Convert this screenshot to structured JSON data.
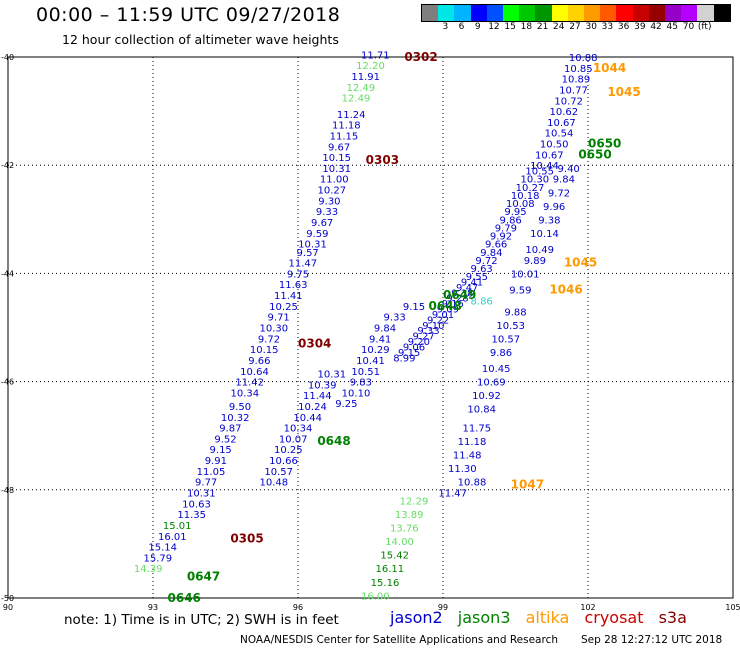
{
  "header": {
    "title": "00:00 – 11:59 UTC 09/27/2018",
    "subtitle": "12 hour collection of altimeter wave heights"
  },
  "color_scale": {
    "colors": [
      "#7f7f7f",
      "#00e6e6",
      "#00b4ff",
      "#0000ff",
      "#0050ff",
      "#00ff00",
      "#00c800",
      "#009600",
      "#ffff00",
      "#ffd200",
      "#ff9900",
      "#ff5a00",
      "#ff0000",
      "#c80000",
      "#960000",
      "#9600c8",
      "#b400ff",
      "#d2d2d2",
      "#000000"
    ],
    "labels": [
      "3",
      "6",
      "9",
      "12",
      "15",
      "18",
      "21",
      "24",
      "27",
      "30",
      "33",
      "36",
      "39",
      "42",
      "45",
      "70",
      "(ft)"
    ]
  },
  "axes": {
    "x_ticks": [
      "90",
      "93",
      "96",
      "99",
      "102",
      "105"
    ],
    "y_ticks": [
      "-40",
      "-42",
      "-44",
      "-46",
      "-48",
      "-50"
    ]
  },
  "sat_colors": {
    "jason2": "#0000cc",
    "jason3": "#008000",
    "jason3_light": "#66dd66",
    "altika": "#ff9900",
    "cryosat": "#cc0000",
    "s3a": "#800000",
    "cyan": "#33cccc"
  },
  "tracks": {
    "track_a": {
      "values": [
        "11.71",
        "12.20",
        "11.91",
        "12.49",
        "12.49",
        "11.24",
        "11.18",
        "11.15",
        "9.67",
        "10.15",
        "10.31",
        "11.00",
        "10.27",
        "9.30",
        "9.33",
        "9.67",
        "9.59",
        "10.31",
        "9.57",
        "11.47",
        "9.75",
        "11.63",
        "11.41",
        "10.25",
        "9.71",
        "10.30",
        "9.72",
        "10.15",
        "9.66",
        "10.64",
        "11.42",
        "10.34",
        "9.50",
        "10.32",
        "9.87",
        "9.52",
        "9.15",
        "9.91",
        "11.05",
        "9.77",
        "10.31",
        "10.63",
        "11.35",
        "15.01",
        "16.01",
        "15.14",
        "15.79",
        "14.39"
      ],
      "lons": [
        97.6,
        97.5,
        97.4,
        97.3,
        97.2,
        97.1,
        97.0,
        96.95,
        96.85,
        96.8,
        96.8,
        96.75,
        96.7,
        96.65,
        96.6,
        96.5,
        96.4,
        96.3,
        96.2,
        96.1,
        96.0,
        95.9,
        95.8,
        95.7,
        95.6,
        95.5,
        95.4,
        95.3,
        95.2,
        95.1,
        95.0,
        94.9,
        94.8,
        94.7,
        94.6,
        94.5,
        94.4,
        94.3,
        94.2,
        94.1,
        94.0,
        93.9,
        93.8,
        93.5,
        93.4,
        93.2,
        93.1,
        92.9
      ],
      "lats": [
        -39.95,
        -40.15,
        -40.35,
        -40.55,
        -40.75,
        -41.05,
        -41.25,
        -41.45,
        -41.65,
        -41.85,
        -42.05,
        -42.25,
        -42.45,
        -42.65,
        -42.85,
        -43.05,
        -43.25,
        -43.45,
        -43.6,
        -43.8,
        -44.0,
        -44.2,
        -44.4,
        -44.6,
        -44.8,
        -45.0,
        -45.2,
        -45.4,
        -45.6,
        -45.8,
        -46.0,
        -46.2,
        -46.45,
        -46.65,
        -46.85,
        -47.05,
        -47.25,
        -47.45,
        -47.65,
        -47.85,
        -48.05,
        -48.25,
        -48.45,
        -48.65,
        -48.85,
        -49.05,
        -49.25,
        -49.45
      ],
      "colors": [
        "jason2",
        "jason3_light",
        "jason2",
        "jason3_light",
        "jason3_light",
        "jason2",
        "jason2",
        "jason2",
        "jason2",
        "jason2",
        "jason2",
        "jason2",
        "jason2",
        "jason2",
        "jason2",
        "jason2",
        "jason2",
        "jason2",
        "jason2",
        "jason2",
        "jason2",
        "jason2",
        "jason2",
        "jason2",
        "jason2",
        "jason2",
        "jason2",
        "jason2",
        "jason2",
        "jason2",
        "jason2",
        "jason2",
        "jason2",
        "jason2",
        "jason2",
        "jason2",
        "jason2",
        "jason2",
        "jason2",
        "jason2",
        "jason2",
        "jason2",
        "jason2",
        "jason3",
        "jason2",
        "jason2",
        "jason2",
        "jason3_light"
      ]
    },
    "track_b": {
      "values": [
        "10.31",
        "10.39",
        "11.44",
        "10.24",
        "10.44",
        "10.34",
        "10.07",
        "10.25",
        "10.66",
        "10.57",
        "10.48",
        "9.15",
        "9.33",
        "9.84",
        "9.41",
        "10.29",
        "10.41",
        "10.51",
        "9.83",
        "10.10",
        "9.25",
        "12.29",
        "13.89",
        "13.76",
        "14.00",
        "15.42",
        "16.11",
        "15.16",
        "16.00"
      ],
      "lons": [
        96.7,
        96.5,
        96.4,
        96.3,
        96.2,
        96.0,
        95.9,
        95.8,
        95.7,
        95.6,
        95.5,
        98.4,
        98.0,
        97.8,
        97.7,
        97.6,
        97.5,
        97.4,
        97.3,
        97.2,
        97.0,
        98.4,
        98.3,
        98.2,
        98.1,
        98.0,
        97.9,
        97.8,
        97.6
      ],
      "lats": [
        -45.85,
        -46.05,
        -46.25,
        -46.45,
        -46.65,
        -46.85,
        -47.05,
        -47.25,
        -47.45,
        -47.65,
        -47.85,
        -44.6,
        -44.8,
        -45.0,
        -45.2,
        -45.4,
        -45.6,
        -45.8,
        -46.0,
        -46.2,
        -46.4,
        -48.2,
        -48.45,
        -48.7,
        -48.95,
        -49.2,
        -49.45,
        -49.7,
        -49.95
      ],
      "colors": [
        "jason2",
        "jason2",
        "jason2",
        "jason2",
        "jason2",
        "jason2",
        "jason2",
        "jason2",
        "jason2",
        "jason2",
        "jason2",
        "jason2",
        "jason2",
        "jason2",
        "jason2",
        "jason2",
        "jason2",
        "jason2",
        "jason2",
        "jason2",
        "jason2",
        "jason3_light",
        "jason3_light",
        "jason3_light",
        "jason3_light",
        "jason3",
        "jason3",
        "jason3",
        "jason3_light"
      ]
    },
    "track_c": {
      "values": [
        "10.88",
        "11.47",
        "11.30",
        "11.48",
        "11.18",
        "11.75",
        "10.84",
        "10.92",
        "10.69",
        "10.45",
        "9.86",
        "10.57",
        "10.53",
        "9.88",
        "9.59",
        "8.86",
        "10.01",
        "9.89",
        "10.49",
        "10.14",
        "9.38",
        "9.96",
        "9.72",
        "9.84",
        "9.40"
      ],
      "lons": [
        99.6,
        99.2,
        99.4,
        99.5,
        99.6,
        99.7,
        99.8,
        99.9,
        100.0,
        100.1,
        100.2,
        100.3,
        100.4,
        100.5,
        100.6,
        99.8,
        100.7,
        100.9,
        101.0,
        101.1,
        101.2,
        101.3,
        101.4,
        101.5,
        101.6
      ],
      "lats": [
        -47.85,
        -48.05,
        -47.6,
        -47.35,
        -47.1,
        -46.85,
        -46.5,
        -46.25,
        -46.0,
        -45.75,
        -45.45,
        -45.2,
        -44.95,
        -44.7,
        -44.3,
        -44.5,
        -44.0,
        -43.75,
        -43.55,
        -43.25,
        -43.0,
        -42.75,
        -42.5,
        -42.25,
        -42.05
      ],
      "colors": [
        "jason2",
        "jason2",
        "jason2",
        "jason2",
        "jason2",
        "jason2",
        "jason2",
        "jason2",
        "jason2",
        "jason2",
        "jason2",
        "jason2",
        "jason2",
        "jason2",
        "jason2",
        "cyan",
        "jason2",
        "jason2",
        "jason2",
        "jason2",
        "jason2",
        "jason2",
        "jason2",
        "jason2",
        "jason2"
      ]
    },
    "track_d": {
      "values": [
        "10.88",
        "10.85",
        "10.89",
        "10.77",
        "10.72",
        "10.62",
        "10.67",
        "10.54",
        "10.50",
        "10.67",
        "10.44",
        "10.55",
        "10.30",
        "10.27",
        "10.18",
        "10.08",
        "9.95",
        "9.86",
        "9.79",
        "9.92",
        "9.66",
        "9.84",
        "9.72",
        "9.63",
        "9.55",
        "9.41",
        "9.47",
        "9.38",
        "9.28",
        "9.16",
        "9.09",
        "9.01",
        "9.22",
        "9.10",
        "9.33",
        "9.27",
        "9.20",
        "9.06",
        "9.15",
        "8.99"
      ],
      "lons": [
        101.9,
        101.8,
        101.75,
        101.7,
        101.6,
        101.5,
        101.45,
        101.4,
        101.3,
        101.2,
        101.1,
        101.0,
        100.9,
        100.8,
        100.7,
        100.6,
        100.5,
        100.4,
        100.3,
        100.2,
        100.1,
        100.0,
        99.9,
        99.8,
        99.7,
        99.6,
        99.5,
        99.4,
        99.3,
        99.2,
        99.1,
        99.0,
        98.9,
        98.8,
        98.7,
        98.6,
        98.5,
        98.4,
        98.3,
        98.2
      ],
      "lats": [
        -40.0,
        -40.2,
        -40.4,
        -40.6,
        -40.8,
        -41.0,
        -41.2,
        -41.4,
        -41.6,
        -41.8,
        -42.0,
        -42.1,
        -42.25,
        -42.4,
        -42.55,
        -42.7,
        -42.85,
        -43.0,
        -43.15,
        -43.3,
        -43.45,
        -43.6,
        -43.75,
        -43.9,
        -44.05,
        -44.15,
        -44.25,
        -44.35,
        -44.45,
        -44.55,
        -44.65,
        -44.75,
        -44.85,
        -44.95,
        -45.05,
        -45.15,
        -45.25,
        -45.35,
        -45.45,
        -45.55
      ],
      "colors": [
        "jason2",
        "jason2",
        "jason2",
        "jason2",
        "jason2",
        "jason2",
        "jason2",
        "jason2",
        "jason2",
        "jason2",
        "jason2",
        "jason2",
        "jason2",
        "jason2",
        "jason2",
        "jason2",
        "jason2",
        "jason2",
        "jason2",
        "jason2",
        "jason2",
        "jason2",
        "jason2",
        "jason2",
        "jason2",
        "jason2",
        "jason2",
        "jason2",
        "jason2",
        "jason2",
        "jason2",
        "jason2",
        "jason2",
        "jason2",
        "jason2",
        "jason2",
        "jason2",
        "jason2",
        "jason2",
        "jason2"
      ]
    }
  },
  "time_labels": [
    {
      "text": "0302",
      "lon": 98.2,
      "lat": -40.0,
      "color": "s3a"
    },
    {
      "text": "0303",
      "lon": 97.4,
      "lat": -41.9,
      "color": "s3a"
    },
    {
      "text": "0304",
      "lon": 96.0,
      "lat": -45.3,
      "color": "s3a"
    },
    {
      "text": "0305",
      "lon": 94.6,
      "lat": -48.9,
      "color": "s3a"
    },
    {
      "text": "0648",
      "lon": 96.4,
      "lat": -47.1,
      "color": "jason3"
    },
    {
      "text": "0647",
      "lon": 93.7,
      "lat": -49.6,
      "color": "jason3"
    },
    {
      "text": "0646",
      "lon": 93.3,
      "lat": -50.0,
      "color": "jason3"
    },
    {
      "text": "0649",
      "lon": 99.0,
      "lat": -44.4,
      "color": "jason3"
    },
    {
      "text": "0648",
      "lon": 98.7,
      "lat": -44.6,
      "color": "jason3"
    },
    {
      "text": "0650",
      "lon": 102.0,
      "lat": -41.6,
      "color": "jason3"
    },
    {
      "text": "0650",
      "lon": 101.8,
      "lat": -41.8,
      "color": "jason3"
    },
    {
      "text": "1044",
      "lon": 102.1,
      "lat": -40.2,
      "color": "altika"
    },
    {
      "text": "1045",
      "lon": 102.4,
      "lat": -40.65,
      "color": "altika"
    },
    {
      "text": "1045",
      "lon": 101.5,
      "lat": -43.8,
      "color": "altika"
    },
    {
      "text": "1046",
      "lon": 101.2,
      "lat": -44.3,
      "color": "altika"
    },
    {
      "text": "1047",
      "lon": 100.4,
      "lat": -47.9,
      "color": "altika"
    }
  ],
  "footer": {
    "note": "note: 1) Time is in UTC; 2) SWH is in feet",
    "sats": [
      {
        "name": "jason2",
        "color": "#0000cc"
      },
      {
        "name": "jason3",
        "color": "#008000"
      },
      {
        "name": "altika",
        "color": "#ff9900"
      },
      {
        "name": "cryosat",
        "color": "#cc0000"
      },
      {
        "name": "s3a",
        "color": "#800000"
      }
    ],
    "credit": "NOAA/NESDIS Center for Satellite Applications and Research",
    "timestamp": "Sep 28 12:27:12 UTC 2018"
  }
}
